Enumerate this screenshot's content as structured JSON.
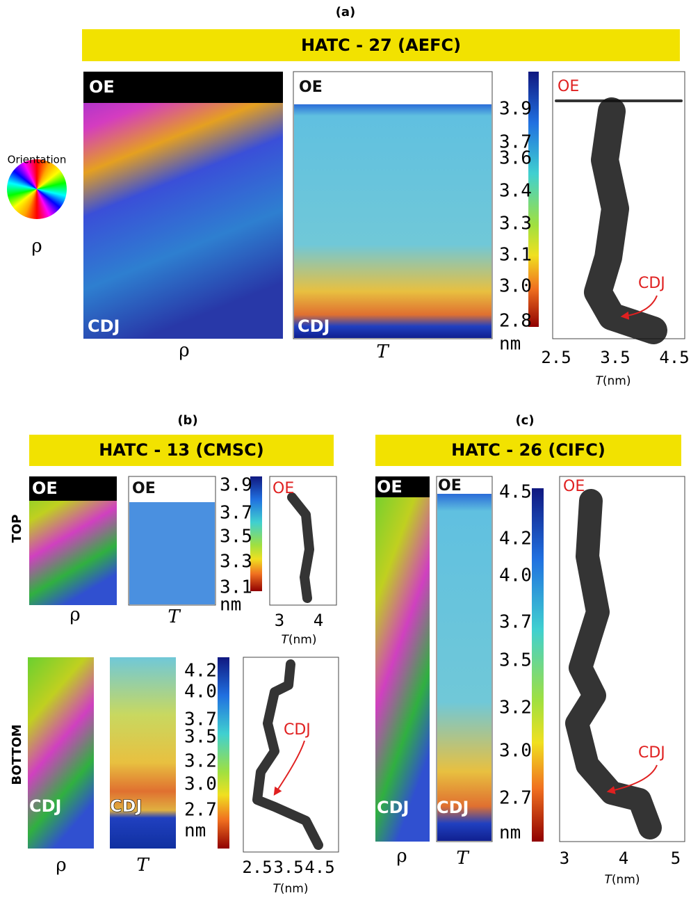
{
  "panel_a": {
    "label": "(a)",
    "title": "HATC - 27 (AEFC)",
    "legend": {
      "title": "Orientation",
      "symbol": "ρ"
    },
    "rho_map": {
      "top": "OE",
      "bottom": "CDJ",
      "caption": "ρ"
    },
    "t_map": {
      "top": "OE",
      "bottom": "CDJ",
      "caption": "T"
    },
    "colorbar": {
      "ticks": [
        "3.9",
        "3.7",
        "3.6",
        "3.4",
        "3.3",
        "3.1",
        "3.0",
        "2.8"
      ],
      "unit": "nm"
    },
    "profile": {
      "top": "OE",
      "marker": "CDJ",
      "xticks": [
        "2.5",
        "3.5",
        "4.5"
      ],
      "xlabel_symbol": "T",
      "xlabel_unit": "(nm)"
    }
  },
  "panel_b": {
    "label": "(b)",
    "title": "HATC - 13 (CMSC)",
    "top": {
      "row_label": "TOP",
      "rho_map": {
        "top": "OE",
        "caption": "ρ"
      },
      "t_map": {
        "top": "OE",
        "caption": "T"
      },
      "colorbar": {
        "ticks": [
          "3.9",
          "3.7",
          "3.5",
          "3.3",
          "3.1"
        ],
        "unit": "nm"
      },
      "profile": {
        "top": "OE",
        "xticks": [
          "3",
          "4"
        ],
        "xlabel_symbol": "T",
        "xlabel_unit": "(nm)"
      }
    },
    "bottom": {
      "row_label": "BOTTOM",
      "rho_map": {
        "bottom": "CDJ",
        "caption": "ρ"
      },
      "t_map": {
        "bottom": "CDJ",
        "caption": "T"
      },
      "colorbar": {
        "ticks": [
          "4.2",
          "4.0",
          "3.7",
          "3.5",
          "3.2",
          "3.0",
          "2.7"
        ],
        "unit": "nm"
      },
      "profile": {
        "marker": "CDJ",
        "xticks": [
          "2.5",
          "3.5",
          "4.5"
        ],
        "xlabel_symbol": "T",
        "xlabel_unit": "(nm)"
      }
    }
  },
  "panel_c": {
    "label": "(c)",
    "title": "HATC - 26 (CIFC)",
    "rho_map": {
      "top": "OE",
      "bottom": "CDJ",
      "caption": "ρ"
    },
    "t_map": {
      "top": "OE",
      "bottom": "CDJ",
      "caption": "T"
    },
    "colorbar": {
      "ticks": [
        "4.5",
        "4.2",
        "4.0",
        "3.7",
        "3.5",
        "3.2",
        "3.0",
        "2.7"
      ],
      "unit": "nm"
    },
    "profile": {
      "top": "OE",
      "marker": "CDJ",
      "xticks": [
        "3",
        "4",
        "5"
      ],
      "xlabel_symbol": "T",
      "xlabel_unit": "(nm)"
    }
  }
}
